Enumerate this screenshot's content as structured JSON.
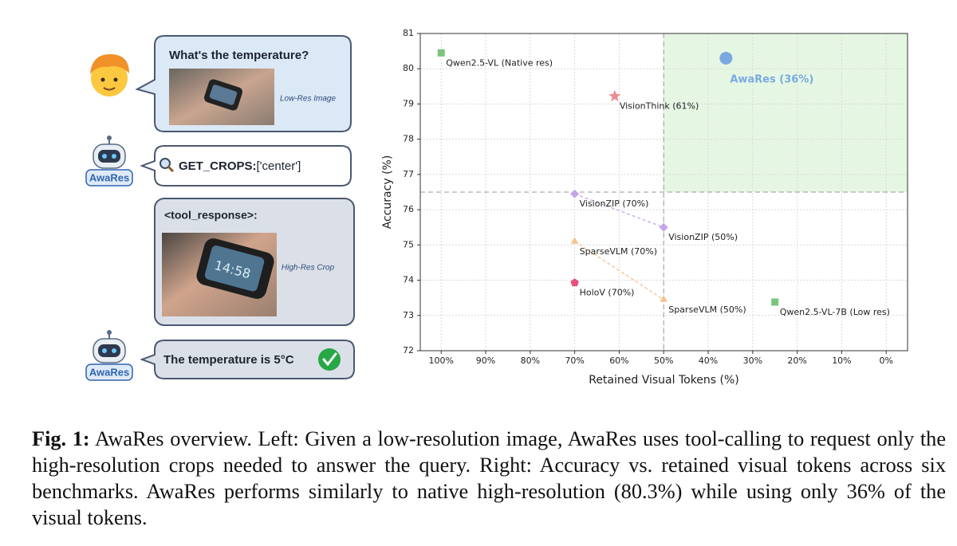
{
  "diagram": {
    "user_query": "What's the temperature?",
    "low_res_caption": "Low-Res Image",
    "agent_label": "AwaRes",
    "tool_call": {
      "name": "GET_CROPS:",
      "args": "['center']"
    },
    "tool_response": "<tool_response>:",
    "high_res_caption": "High-Res Crop",
    "answer": "The temperature is 5°C"
  },
  "chart_data": {
    "type": "scatter",
    "xlabel": "Retained Visual Tokens (%)",
    "ylabel": "Accuracy (%)",
    "xlim": [
      104.7,
      -4.8
    ],
    "ylim": [
      72,
      81
    ],
    "xticks": [
      {
        "value": 100,
        "label": "100%"
      },
      {
        "value": 90,
        "label": "90%"
      },
      {
        "value": 80,
        "label": "80%"
      },
      {
        "value": 70,
        "label": "70%"
      },
      {
        "value": 60,
        "label": "60%"
      },
      {
        "value": 50,
        "label": "50%"
      },
      {
        "value": 40,
        "label": "40%"
      },
      {
        "value": 30,
        "label": "30%"
      },
      {
        "value": 20,
        "label": "20%"
      },
      {
        "value": 10,
        "label": "10%"
      },
      {
        "value": 0,
        "label": "0%"
      }
    ],
    "yticks": [
      72,
      73,
      74,
      75,
      76,
      77,
      78,
      79,
      80,
      81
    ],
    "grid": true,
    "reference": {
      "x": 50,
      "y": 76.5,
      "color": "#9a9a9a",
      "highlight_color": "#e5f7e3"
    },
    "series": [
      {
        "labels": [
          "Qwen2.5-VL (Native res)"
        ],
        "x": [
          100
        ],
        "y": [
          80.45
        ],
        "color": "#7cc47c",
        "marker": "square"
      },
      {
        "labels": [
          "AwaRes (36%)"
        ],
        "x": [
          36
        ],
        "y": [
          80.3
        ],
        "color": "#7aa9e2",
        "marker": "circle"
      },
      {
        "labels": [
          "VisionThink (61%)"
        ],
        "x": [
          61
        ],
        "y": [
          79.22
        ],
        "color": "#ea8e98",
        "marker": "star"
      },
      {
        "labels": [
          "VisionZIP (70%)",
          "VisionZIP (50%)"
        ],
        "x": [
          70,
          50
        ],
        "y": [
          76.45,
          75.5
        ],
        "color": "#c3a5e9",
        "marker": "diamond",
        "connected": true
      },
      {
        "labels": [
          "SparseVLM (70%)",
          "SparseVLM (50%)"
        ],
        "x": [
          70,
          50
        ],
        "y": [
          75.1,
          73.45
        ],
        "color": "#f6c18b",
        "marker": "triangle",
        "connected": true
      },
      {
        "labels": [
          "HoloV (70%)"
        ],
        "x": [
          70
        ],
        "y": [
          73.93
        ],
        "color": "#e8517c",
        "marker": "pentagon"
      },
      {
        "labels": [
          "Qwen2.5-VL-7B (Low res)"
        ],
        "x": [
          25
        ],
        "y": [
          73.38
        ],
        "color": "#7cc47c",
        "marker": "square"
      }
    ]
  },
  "caption": {
    "label": "Fig. 1:",
    "text": "AwaRes overview. Left: Given a low-resolution image, AwaRes uses tool-calling to request only the high-resolution crops needed to answer the query. Right: Accuracy vs. retained visual tokens across six benchmarks. AwaRes performs similarly to native high-resolution (80.3%) while using only 36% of the visual tokens."
  }
}
